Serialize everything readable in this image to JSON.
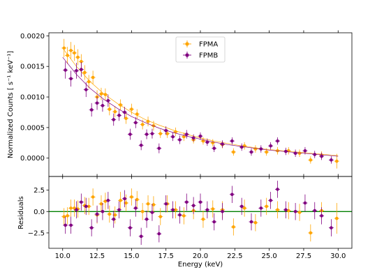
{
  "chart_data": [
    {
      "type": "scatter",
      "xlabel": "",
      "ylabel": "Normalized Counts [ s⁻¹ keV⁻¹]",
      "xlim": [
        9.0,
        31.0
      ],
      "ylim": [
        -0.0003,
        0.00205
      ],
      "x_ticks": [
        10.0,
        12.5,
        15.0,
        17.5,
        20.0,
        22.5,
        25.0,
        27.5,
        30.0
      ],
      "y_ticks": [
        0.0,
        0.0005,
        0.001,
        0.0015,
        0.002
      ],
      "y_tick_labels": [
        "0.0000",
        "0.0005",
        "0.0010",
        "0.0015",
        "0.0020"
      ],
      "legend": {
        "placement": "top-center",
        "entries": [
          "FPMA",
          "FPMB"
        ]
      },
      "series": [
        {
          "name": "FPMA",
          "color": "#ffa500",
          "x": [
            10.1,
            10.35,
            10.6,
            10.85,
            11.1,
            11.35,
            11.6,
            11.9,
            12.2,
            12.5,
            12.8,
            13.1,
            13.4,
            13.8,
            14.2,
            14.6,
            15.0,
            15.4,
            15.8,
            16.2,
            16.6,
            17.1,
            17.6,
            18.2,
            18.8,
            19.5,
            20.2,
            20.9,
            21.6,
            22.4,
            23.2,
            24.0,
            24.8,
            25.6,
            26.4,
            27.2,
            28.0,
            28.8,
            29.9
          ],
          "y": [
            0.0018,
            0.00168,
            0.00176,
            0.00172,
            0.00165,
            0.00158,
            0.0014,
            0.00125,
            0.00132,
            0.001,
            0.00105,
            0.00104,
            0.0008,
            0.00076,
            0.00087,
            0.00065,
            0.0008,
            0.00072,
            0.00055,
            0.0006,
            0.00053,
            0.0004,
            0.0004,
            0.00043,
            0.00035,
            0.0003,
            0.00028,
            0.00025,
            0.00022,
            0.0001,
            0.0002,
            0.00015,
            0.0001,
            0.00012,
            0.00012,
            8e-05,
            -3e-05,
            5e-05,
            -5e-05
          ],
          "yerr": [
            0.00015,
            0.00014,
            0.00014,
            0.00013,
            0.00013,
            0.00012,
            0.00012,
            0.00011,
            0.00011,
            0.00011,
            0.0001,
            0.0001,
            0.0001,
            9e-05,
            9e-05,
            9e-05,
            9e-05,
            8e-05,
            8e-05,
            8e-05,
            8e-05,
            7e-05,
            7e-05,
            7e-05,
            7e-05,
            6e-05,
            6e-05,
            6e-05,
            6e-05,
            6e-05,
            6e-05,
            6e-05,
            6e-05,
            6e-05,
            6e-05,
            6e-05,
            6e-05,
            6e-05,
            0.00012
          ],
          "model_x": [
            10.0,
            11,
            12,
            13,
            14,
            15,
            16,
            17,
            18,
            19,
            20,
            21,
            22,
            23,
            24,
            25,
            26,
            27,
            28,
            29,
            30
          ],
          "model_y": [
            0.0018,
            0.0015,
            0.00125,
            0.00105,
            0.00089,
            0.00075,
            0.00063,
            0.00054,
            0.00046,
            0.00039,
            0.00033,
            0.00028,
            0.00024,
            0.0002,
            0.00017,
            0.00014,
            0.00012,
            0.0001,
            8e-05,
            6e-05,
            4e-05
          ]
        },
        {
          "name": "FPMB",
          "color": "#800080",
          "x": [
            10.2,
            10.6,
            11.0,
            11.35,
            11.7,
            12.1,
            12.5,
            12.9,
            13.3,
            13.7,
            14.1,
            14.5,
            14.9,
            15.3,
            15.7,
            16.1,
            16.5,
            17.0,
            17.5,
            18.0,
            18.5,
            19.0,
            19.5,
            20.0,
            20.5,
            21.0,
            21.6,
            22.3,
            23.0,
            23.7,
            24.4,
            25.1,
            25.6,
            26.2,
            26.9,
            27.6,
            28.3,
            28.8,
            29.5
          ],
          "y": [
            0.00144,
            0.0013,
            0.00143,
            0.00145,
            0.00112,
            0.00079,
            0.0009,
            0.00086,
            0.00094,
            0.00063,
            0.0007,
            0.00075,
            0.00039,
            0.00058,
            0.00021,
            0.00039,
            0.0004,
            0.00016,
            0.00045,
            0.00035,
            0.0003,
            0.00039,
            0.00033,
            0.00036,
            0.00026,
            0.00016,
            0.00023,
            0.00028,
            0.00018,
            0.0001,
            0.00015,
            0.0002,
            0.00028,
            0.00011,
            8e-05,
            0.00012,
            6e-05,
            3e-05,
            -3e-05
          ],
          "yerr": [
            0.00014,
            0.00013,
            0.00013,
            0.00012,
            0.00012,
            0.00011,
            0.00011,
            0.0001,
            0.0001,
            0.0001,
            9e-05,
            9e-05,
            9e-05,
            9e-05,
            8e-05,
            8e-05,
            8e-05,
            8e-05,
            7e-05,
            7e-05,
            7e-05,
            7e-05,
            6e-05,
            6e-05,
            6e-05,
            6e-05,
            6e-05,
            6e-05,
            6e-05,
            6e-05,
            6e-05,
            6e-05,
            6e-05,
            6e-05,
            6e-05,
            6e-05,
            6e-05,
            6e-05,
            6e-05
          ],
          "model_x": [
            10.0,
            11,
            12,
            13,
            14,
            15,
            16,
            17,
            18,
            19,
            20,
            21,
            22,
            23,
            24,
            25,
            26,
            27,
            28,
            29,
            30
          ],
          "model_y": [
            0.00165,
            0.00137,
            0.00114,
            0.00096,
            0.00081,
            0.00068,
            0.00058,
            0.00049,
            0.00042,
            0.00036,
            0.00031,
            0.00026,
            0.00022,
            0.00019,
            0.00016,
            0.00013,
            0.00011,
            9e-05,
            7e-05,
            5e-05,
            3e-05
          ]
        }
      ]
    },
    {
      "type": "scatter",
      "xlabel": "Energy (keV)",
      "ylabel": "Residuals",
      "xlim": [
        9.0,
        31.0
      ],
      "ylim": [
        -4.3,
        4.1
      ],
      "x_ticks": [
        10.0,
        12.5,
        15.0,
        17.5,
        20.0,
        22.5,
        25.0,
        27.5,
        30.0
      ],
      "x_tick_labels": [
        "10.0",
        "12.5",
        "15.0",
        "17.5",
        "20.0",
        "22.5",
        "25.0",
        "27.5",
        "30.0"
      ],
      "y_ticks": [
        -2.5,
        0.0,
        2.5
      ],
      "y_tick_labels": [
        "−2.5",
        "0.0",
        "2.5"
      ],
      "reference_line": {
        "y": 0.0,
        "color": "#008000"
      },
      "series": [
        {
          "name": "FPMA",
          "color": "#ffa500",
          "x": [
            10.1,
            10.35,
            10.6,
            10.85,
            11.1,
            11.6,
            11.9,
            12.2,
            12.5,
            12.8,
            13.1,
            13.4,
            13.8,
            14.2,
            14.6,
            15.0,
            15.4,
            15.8,
            16.2,
            16.6,
            17.1,
            17.6,
            18.2,
            18.8,
            19.5,
            20.2,
            20.9,
            21.6,
            22.4,
            23.2,
            24.0,
            24.8,
            25.6,
            26.4,
            27.2,
            28.0,
            28.8,
            29.9
          ],
          "y": [
            -0.6,
            -0.5,
            0.4,
            0.4,
            0.3,
            0.7,
            0.6,
            1.7,
            -0.4,
            0.9,
            1.2,
            -0.3,
            -0.4,
            1.3,
            1.0,
            1.7,
            1.4,
            0.0,
            0.9,
            0.8,
            -0.6,
            0.9,
            0.2,
            -0.5,
            0.1,
            -0.9,
            0.3,
            0.2,
            -1.8,
            0.4,
            -1.3,
            0.6,
            0.2,
            0.1,
            -0.1,
            -2.5,
            0.1,
            -0.8
          ],
          "yerr": [
            1.0,
            1.0,
            1.0,
            1.0,
            1.0,
            1.0,
            1.0,
            1.0,
            1.0,
            1.0,
            1.0,
            1.0,
            1.0,
            1.0,
            1.0,
            1.0,
            1.0,
            1.0,
            1.0,
            1.0,
            1.0,
            1.0,
            1.0,
            1.0,
            1.0,
            1.0,
            1.0,
            1.0,
            1.0,
            1.0,
            1.0,
            1.0,
            1.0,
            1.0,
            1.0,
            1.0,
            1.0,
            1.8
          ]
        },
        {
          "name": "FPMB",
          "color": "#800080",
          "x": [
            10.2,
            10.6,
            11.0,
            11.35,
            11.7,
            12.1,
            12.5,
            12.9,
            13.3,
            13.7,
            14.1,
            14.5,
            14.9,
            15.3,
            15.7,
            16.1,
            16.5,
            17.0,
            17.5,
            18.0,
            18.5,
            19.0,
            19.5,
            20.0,
            20.5,
            21.0,
            21.6,
            22.3,
            23.0,
            23.7,
            24.4,
            25.1,
            25.6,
            26.2,
            26.9,
            27.6,
            28.3,
            28.8,
            29.5
          ],
          "y": [
            -1.6,
            -1.6,
            0.2,
            1.1,
            0.6,
            -1.9,
            -0.3,
            0.0,
            1.3,
            -0.9,
            0.2,
            1.5,
            -1.9,
            0.4,
            -2.9,
            -0.9,
            -0.1,
            -2.6,
            0.9,
            0.2,
            -0.4,
            1.1,
            0.7,
            1.1,
            0.2,
            -1.2,
            0.0,
            2.0,
            0.6,
            -1.2,
            0.4,
            1.3,
            2.6,
            0.2,
            0.0,
            1.0,
            0.1,
            -0.5,
            -1.9
          ],
          "yerr": [
            1.0,
            1.0,
            1.0,
            1.0,
            1.0,
            1.0,
            1.0,
            1.0,
            1.0,
            1.0,
            1.0,
            1.0,
            1.0,
            1.0,
            1.0,
            1.0,
            1.0,
            1.0,
            1.0,
            1.0,
            1.0,
            1.0,
            1.0,
            1.0,
            1.0,
            1.0,
            1.0,
            1.0,
            1.0,
            1.0,
            1.0,
            1.0,
            1.0,
            1.0,
            1.0,
            1.0,
            1.0,
            1.0,
            1.0
          ]
        }
      ]
    }
  ]
}
